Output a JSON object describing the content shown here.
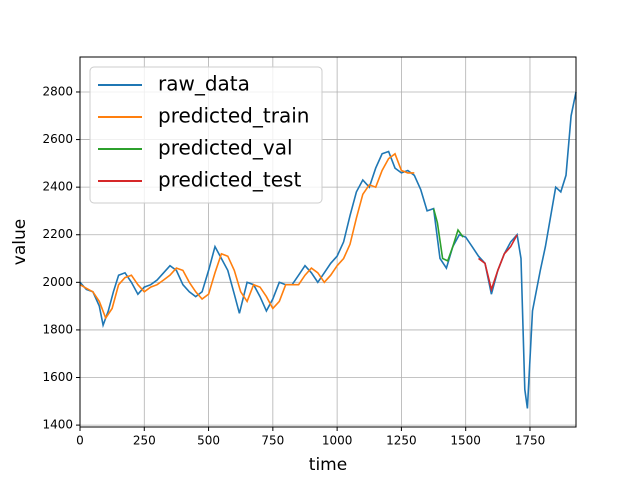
{
  "chart_data": {
    "type": "line",
    "x_label": "time",
    "y_label": "value",
    "xlim": [
      0,
      1929
    ],
    "ylim": [
      1392,
      2947
    ],
    "xticks": [
      0,
      250,
      500,
      750,
      1000,
      1250,
      1500,
      1750
    ],
    "yticks": [
      1400,
      1600,
      1800,
      2000,
      2200,
      2400,
      2600,
      2800
    ],
    "grid": true,
    "legend": "upper-left",
    "series": [
      {
        "name": "raw_data",
        "color": "#1f77b4",
        "x": [
          0,
          25,
          50,
          75,
          90,
          110,
          130,
          150,
          175,
          200,
          225,
          250,
          275,
          300,
          325,
          350,
          375,
          400,
          425,
          450,
          475,
          500,
          525,
          550,
          575,
          600,
          620,
          650,
          675,
          700,
          725,
          750,
          775,
          800,
          825,
          850,
          875,
          900,
          925,
          950,
          975,
          1000,
          1025,
          1050,
          1075,
          1100,
          1125,
          1150,
          1175,
          1200,
          1225,
          1250,
          1275,
          1300,
          1325,
          1350,
          1375,
          1400,
          1425,
          1450,
          1475,
          1500,
          1525,
          1550,
          1575,
          1600,
          1625,
          1650,
          1675,
          1700,
          1715,
          1730,
          1740,
          1760,
          1790,
          1810,
          1850,
          1870,
          1890,
          1910,
          1929
        ],
        "values": [
          2000,
          1970,
          1960,
          1900,
          1820,
          1880,
          1960,
          2030,
          2040,
          2000,
          1950,
          1980,
          1990,
          2010,
          2040,
          2070,
          2050,
          1990,
          1960,
          1940,
          1960,
          2050,
          2150,
          2100,
          2050,
          1950,
          1870,
          2000,
          1990,
          1940,
          1880,
          1930,
          2000,
          1990,
          1990,
          2030,
          2070,
          2040,
          2000,
          2040,
          2080,
          2110,
          2170,
          2280,
          2380,
          2430,
          2400,
          2480,
          2540,
          2550,
          2480,
          2460,
          2470,
          2450,
          2390,
          2300,
          2310,
          2100,
          2060,
          2150,
          2200,
          2190,
          2150,
          2110,
          2080,
          1950,
          2050,
          2120,
          2170,
          2200,
          2100,
          1550,
          1470,
          1880,
          2050,
          2150,
          2400,
          2380,
          2450,
          2700,
          2800
        ]
      },
      {
        "name": "predicted_train",
        "color": "#ff7f0e",
        "x": [
          0,
          25,
          50,
          75,
          100,
          125,
          150,
          175,
          200,
          225,
          250,
          275,
          300,
          325,
          350,
          375,
          400,
          425,
          450,
          475,
          500,
          525,
          550,
          575,
          600,
          625,
          650,
          675,
          700,
          725,
          750,
          775,
          800,
          825,
          850,
          875,
          900,
          925,
          950,
          975,
          1000,
          1025,
          1050,
          1075,
          1100,
          1125,
          1150,
          1175,
          1200,
          1225,
          1250,
          1275,
          1300
        ],
        "values": [
          1990,
          1975,
          1960,
          1920,
          1850,
          1890,
          1990,
          2020,
          2030,
          1990,
          1960,
          1980,
          1990,
          2010,
          2030,
          2060,
          2050,
          2000,
          1960,
          1930,
          1950,
          2040,
          2120,
          2110,
          2050,
          1960,
          1920,
          1990,
          1980,
          1940,
          1890,
          1920,
          1990,
          1990,
          1990,
          2030,
          2060,
          2040,
          2000,
          2030,
          2070,
          2100,
          2160,
          2270,
          2370,
          2410,
          2400,
          2470,
          2520,
          2540,
          2470,
          2460,
          2460
        ]
      },
      {
        "name": "predicted_val",
        "color": "#2ca02c",
        "x": [
          1375,
          1390,
          1410,
          1430,
          1450,
          1470,
          1490
        ],
        "values": [
          2310,
          2250,
          2100,
          2090,
          2150,
          2220,
          2190
        ]
      },
      {
        "name": "predicted_test",
        "color": "#d62728",
        "x": [
          1550,
          1575,
          1600,
          1625,
          1650,
          1675,
          1700
        ],
        "values": [
          2100,
          2080,
          1970,
          2050,
          2120,
          2150,
          2200
        ]
      }
    ]
  }
}
